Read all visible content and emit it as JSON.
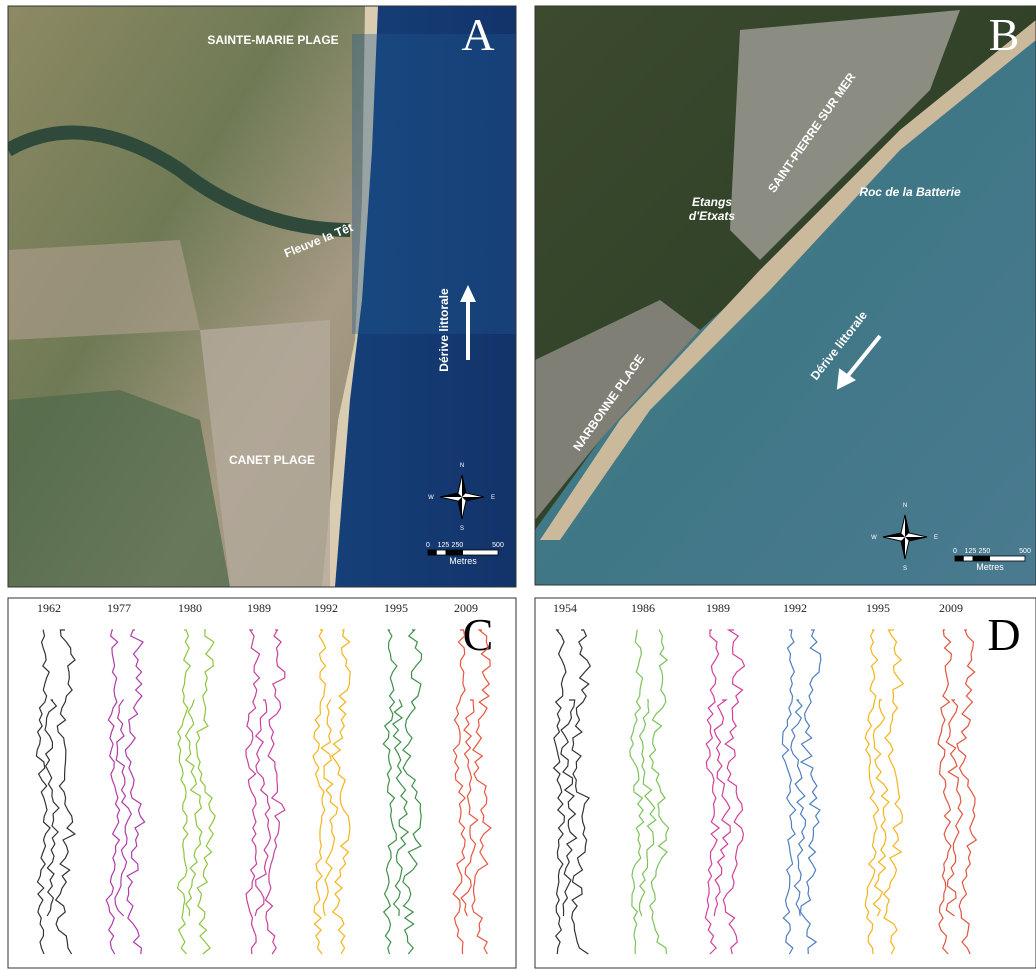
{
  "panels": [
    {
      "letter": "A",
      "places": [
        "SAINTE-MARIE PLAGE",
        "Fleuve la Têt",
        "CANET PLAGE"
      ],
      "drift": "Dérive littorale",
      "compass": [
        "N",
        "W",
        "E",
        "S"
      ],
      "scale": [
        "0",
        "125",
        "250",
        "500"
      ],
      "scale_unit": "Metres"
    },
    {
      "letter": "B",
      "places": [
        "SAINT-PIERRE SUR MER",
        "Etangs",
        "d'Etxats",
        "Roc de la Batterie",
        "NARBONNE PLAGE"
      ],
      "drift": "Dérive littorale",
      "compass": [
        "N",
        "W",
        "E",
        "S"
      ],
      "scale": [
        "0",
        "125",
        "250",
        "500"
      ],
      "scale_unit": "Metres"
    },
    {
      "letter": "C",
      "years": [
        {
          "label": "1962",
          "color": "#333333"
        },
        {
          "label": "1977",
          "color": "#b03aa8"
        },
        {
          "label": "1980",
          "color": "#8cc63f"
        },
        {
          "label": "1989",
          "color": "#c8409a"
        },
        {
          "label": "1992",
          "color": "#f4b41a"
        },
        {
          "label": "1995",
          "color": "#3f8f4a"
        },
        {
          "label": "2009",
          "color": "#e8553f"
        }
      ]
    },
    {
      "letter": "D",
      "years": [
        {
          "label": "1954",
          "color": "#333333"
        },
        {
          "label": "1986",
          "color": "#7cc35a"
        },
        {
          "label": "1989",
          "color": "#d2409a"
        },
        {
          "label": "1992",
          "color": "#4f7fc0"
        },
        {
          "label": "1995",
          "color": "#f4b41a"
        },
        {
          "label": "2009",
          "color": "#e0553f"
        }
      ]
    }
  ]
}
